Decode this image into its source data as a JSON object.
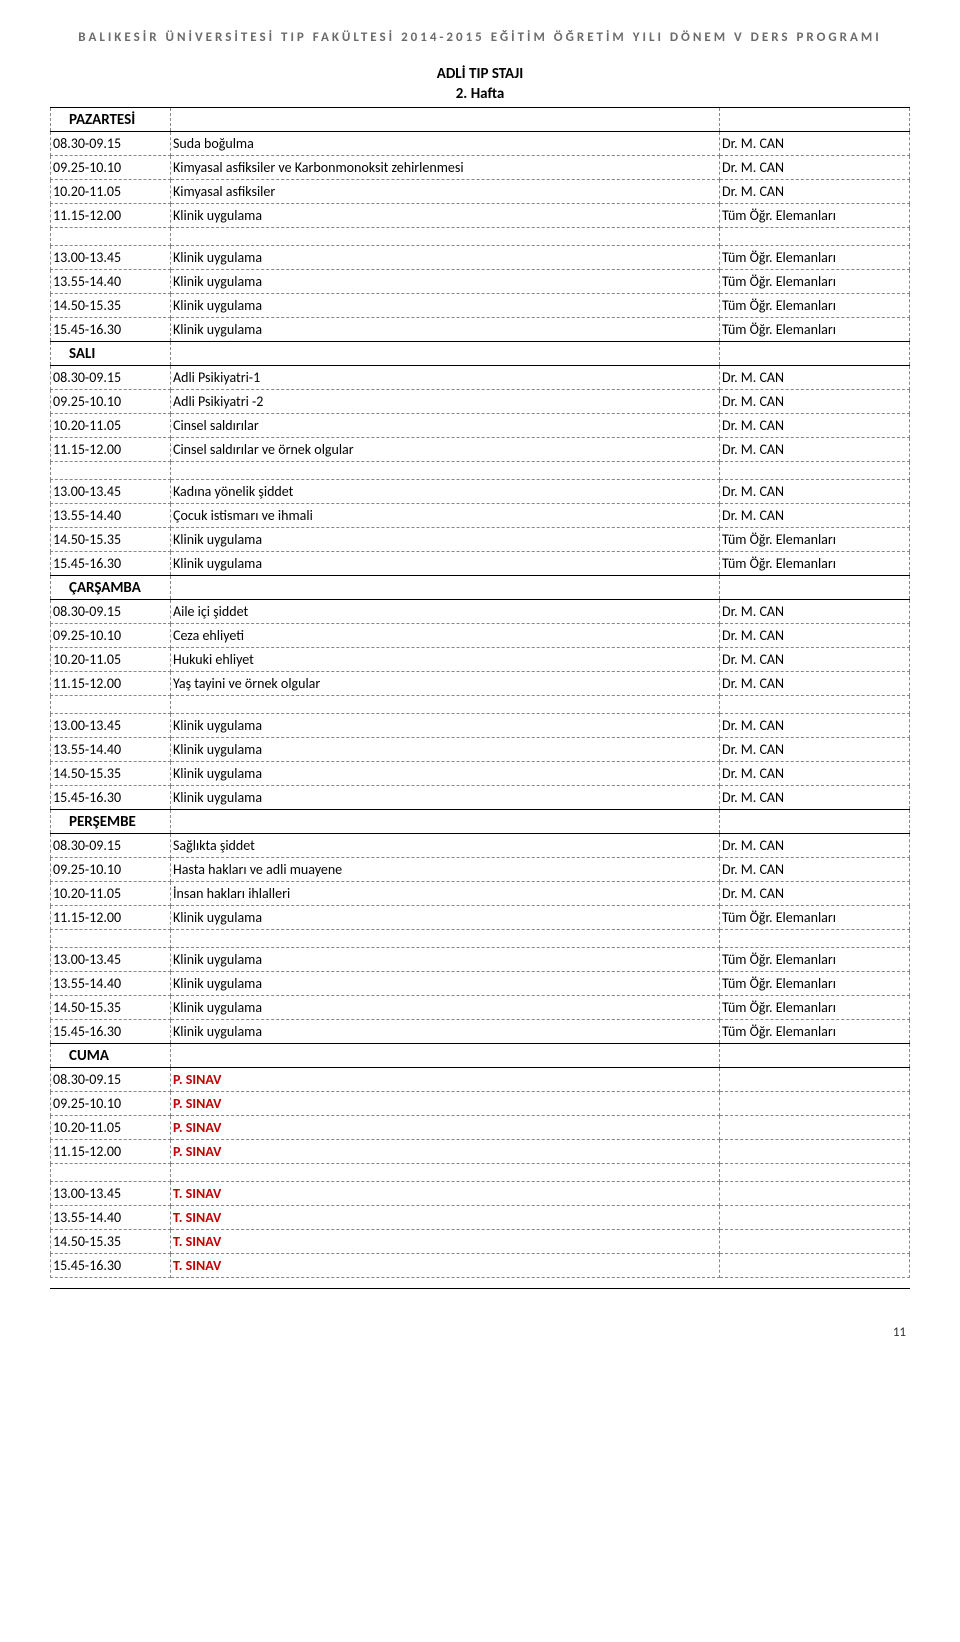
{
  "header": "BALIKESİR ÜNİVERSİTESİ TIP FAKÜLTESİ 2014-2015 EĞİTİM ÖĞRETİM YILI DÖNEM V DERS PROGRAMI",
  "title": "ADLİ TIP STAJI",
  "subtitle": "2. Hafta",
  "page_number": "11",
  "days": [
    {
      "label": "PAZARTESİ",
      "morning": [
        {
          "time": "08.30-09.15",
          "subj": "Suda boğulma",
          "inst": "Dr. M. CAN"
        },
        {
          "time": "09.25-10.10",
          "subj": "Kimyasal asfiksiler ve Karbonmonoksit zehirlenmesi",
          "inst": "Dr. M. CAN"
        },
        {
          "time": "10.20-11.05",
          "subj": "Kimyasal asfiksiler",
          "inst": "Dr. M. CAN"
        },
        {
          "time": "11.15-12.00",
          "subj": "Klinik uygulama",
          "inst": "Tüm Öğr. Elemanları"
        }
      ],
      "afternoon": [
        {
          "time": "13.00-13.45",
          "subj": "Klinik uygulama",
          "inst": "Tüm Öğr. Elemanları"
        },
        {
          "time": "13.55-14.40",
          "subj": "Klinik uygulama",
          "inst": "Tüm Öğr. Elemanları"
        },
        {
          "time": "14.50-15.35",
          "subj": "Klinik uygulama",
          "inst": "Tüm Öğr. Elemanları"
        },
        {
          "time": "15.45-16.30",
          "subj": "Klinik uygulama",
          "inst": "Tüm Öğr. Elemanları"
        }
      ]
    },
    {
      "label": "SALI",
      "morning": [
        {
          "time": "08.30-09.15",
          "subj": "Adli Psikiyatri-1",
          "inst": "Dr. M. CAN"
        },
        {
          "time": "09.25-10.10",
          "subj": "Adli Psikiyatri -2",
          "inst": "Dr. M. CAN"
        },
        {
          "time": "10.20-11.05",
          "subj": "Cinsel saldırılar",
          "inst": "Dr. M. CAN"
        },
        {
          "time": "11.15-12.00",
          "subj": "Cinsel saldırılar ve örnek olgular",
          "inst": "Dr. M. CAN"
        }
      ],
      "afternoon": [
        {
          "time": "13.00-13.45",
          "subj": "Kadına yönelik şiddet",
          "inst": "Dr. M. CAN"
        },
        {
          "time": "13.55-14.40",
          "subj": "Çocuk istismarı ve ihmali",
          "inst": "Dr. M. CAN"
        },
        {
          "time": "14.50-15.35",
          "subj": "Klinik uygulama",
          "inst": "Tüm Öğr. Elemanları"
        },
        {
          "time": "15.45-16.30",
          "subj": "Klinik uygulama",
          "inst": "Tüm Öğr. Elemanları"
        }
      ]
    },
    {
      "label": "ÇARŞAMBA",
      "morning": [
        {
          "time": "08.30-09.15",
          "subj": "Aile içi şiddet",
          "inst": "Dr. M. CAN"
        },
        {
          "time": "09.25-10.10",
          "subj": "Ceza ehliyeti",
          "inst": "Dr. M. CAN"
        },
        {
          "time": "10.20-11.05",
          "subj": "Hukuki ehliyet",
          "inst": "Dr. M. CAN"
        },
        {
          "time": "11.15-12.00",
          "subj": "Yaş tayini ve örnek olgular",
          "inst": "Dr. M. CAN"
        }
      ],
      "afternoon": [
        {
          "time": "13.00-13.45",
          "subj": "Klinik uygulama",
          "inst": "Dr. M. CAN"
        },
        {
          "time": "13.55-14.40",
          "subj": "Klinik uygulama",
          "inst": "Dr. M. CAN"
        },
        {
          "time": "14.50-15.35",
          "subj": "Klinik uygulama",
          "inst": "Dr. M. CAN"
        },
        {
          "time": "15.45-16.30",
          "subj": "Klinik uygulama",
          "inst": "Dr. M. CAN"
        }
      ]
    },
    {
      "label": "PERŞEMBE",
      "morning": [
        {
          "time": "08.30-09.15",
          "subj": "Sağlıkta şiddet",
          "inst": "Dr. M. CAN"
        },
        {
          "time": "09.25-10.10",
          "subj": "Hasta hakları ve adli muayene",
          "inst": "Dr. M. CAN"
        },
        {
          "time": "10.20-11.05",
          "subj": "İnsan hakları ihlalleri",
          "inst": "Dr. M. CAN"
        },
        {
          "time": "11.15-12.00",
          "subj": "Klinik uygulama",
          "inst": "Tüm Öğr. Elemanları"
        }
      ],
      "afternoon": [
        {
          "time": "13.00-13.45",
          "subj": "Klinik uygulama",
          "inst": "Tüm Öğr. Elemanları"
        },
        {
          "time": "13.55-14.40",
          "subj": "Klinik uygulama",
          "inst": "Tüm Öğr. Elemanları"
        },
        {
          "time": "14.50-15.35",
          "subj": "Klinik uygulama",
          "inst": "Tüm Öğr. Elemanları"
        },
        {
          "time": "15.45-16.30",
          "subj": "Klinik uygulama",
          "inst": "Tüm Öğr. Elemanları"
        }
      ]
    },
    {
      "label": "CUMA",
      "morning": [
        {
          "time": "08.30-09.15",
          "subj": "P. SINAV",
          "inst": "",
          "red": true
        },
        {
          "time": "09.25-10.10",
          "subj": "P. SINAV",
          "inst": "",
          "red": true
        },
        {
          "time": "10.20-11.05",
          "subj": "P. SINAV",
          "inst": "",
          "red": true
        },
        {
          "time": "11.15-12.00",
          "subj": "P. SINAV",
          "inst": "",
          "red": true
        }
      ],
      "afternoon": [
        {
          "time": "13.00-13.45",
          "subj": "T. SINAV",
          "inst": "",
          "red": true
        },
        {
          "time": "13.55-14.40",
          "subj": "T. SINAV",
          "inst": "",
          "red": true
        },
        {
          "time": "14.50-15.35",
          "subj": "T. SINAV",
          "inst": "",
          "red": true
        },
        {
          "time": "15.45-16.30",
          "subj": "T. SINAV",
          "inst": "",
          "red": true
        }
      ]
    }
  ]
}
